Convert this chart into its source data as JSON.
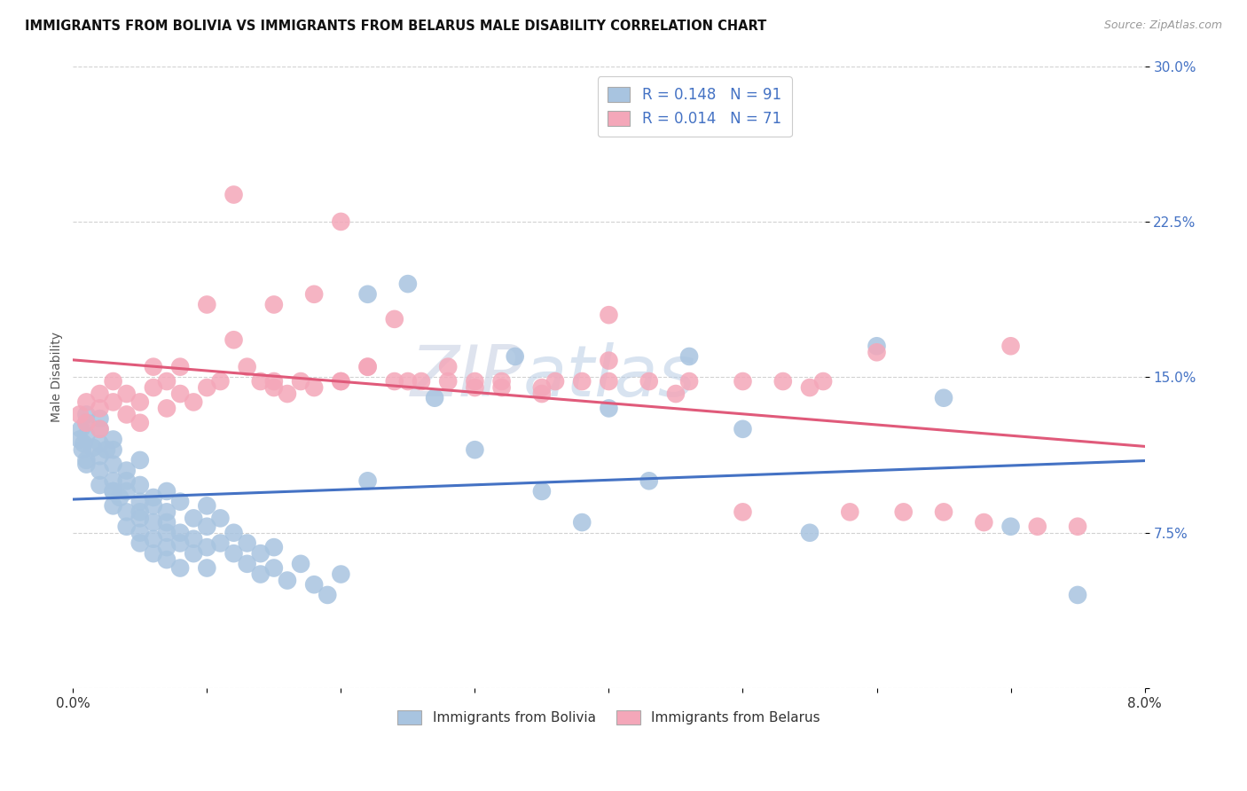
{
  "title": "IMMIGRANTS FROM BOLIVIA VS IMMIGRANTS FROM BELARUS MALE DISABILITY CORRELATION CHART",
  "source": "Source: ZipAtlas.com",
  "xlabel_bolivia": "Immigrants from Bolivia",
  "xlabel_belarus": "Immigrants from Belarus",
  "ylabel": "Male Disability",
  "xmin": 0.0,
  "xmax": 0.08,
  "ymin": 0.0,
  "ymax": 0.3,
  "bolivia_color": "#a8c4e0",
  "belarus_color": "#f4a7b9",
  "bolivia_line_color": "#4472c4",
  "belarus_line_color": "#e05a7a",
  "R_bolivia": 0.148,
  "N_bolivia": 91,
  "R_belarus": 0.014,
  "N_belarus": 71,
  "bolivia_x": [
    0.0005,
    0.0006,
    0.0007,
    0.0008,
    0.001,
    0.001,
    0.001,
    0.001,
    0.001,
    0.0015,
    0.002,
    0.002,
    0.002,
    0.002,
    0.002,
    0.002,
    0.0025,
    0.003,
    0.003,
    0.003,
    0.003,
    0.003,
    0.003,
    0.003,
    0.0035,
    0.004,
    0.004,
    0.004,
    0.004,
    0.004,
    0.005,
    0.005,
    0.005,
    0.005,
    0.005,
    0.005,
    0.005,
    0.006,
    0.006,
    0.006,
    0.006,
    0.006,
    0.007,
    0.007,
    0.007,
    0.007,
    0.007,
    0.007,
    0.008,
    0.008,
    0.008,
    0.008,
    0.009,
    0.009,
    0.009,
    0.01,
    0.01,
    0.01,
    0.01,
    0.011,
    0.011,
    0.012,
    0.012,
    0.013,
    0.013,
    0.014,
    0.014,
    0.015,
    0.015,
    0.016,
    0.017,
    0.018,
    0.019,
    0.02,
    0.022,
    0.022,
    0.025,
    0.027,
    0.03,
    0.033,
    0.035,
    0.038,
    0.04,
    0.043,
    0.046,
    0.05,
    0.055,
    0.06,
    0.065,
    0.07,
    0.075
  ],
  "bolivia_y": [
    0.12,
    0.125,
    0.115,
    0.118,
    0.11,
    0.122,
    0.128,
    0.132,
    0.108,
    0.116,
    0.105,
    0.112,
    0.118,
    0.098,
    0.125,
    0.13,
    0.115,
    0.095,
    0.1,
    0.108,
    0.115,
    0.088,
    0.095,
    0.12,
    0.092,
    0.085,
    0.095,
    0.105,
    0.078,
    0.1,
    0.082,
    0.09,
    0.098,
    0.075,
    0.085,
    0.11,
    0.07,
    0.08,
    0.092,
    0.072,
    0.088,
    0.065,
    0.075,
    0.085,
    0.095,
    0.068,
    0.08,
    0.062,
    0.075,
    0.09,
    0.07,
    0.058,
    0.072,
    0.082,
    0.065,
    0.068,
    0.078,
    0.088,
    0.058,
    0.07,
    0.082,
    0.065,
    0.075,
    0.06,
    0.07,
    0.055,
    0.065,
    0.058,
    0.068,
    0.052,
    0.06,
    0.05,
    0.045,
    0.055,
    0.19,
    0.1,
    0.195,
    0.14,
    0.115,
    0.16,
    0.095,
    0.08,
    0.135,
    0.1,
    0.16,
    0.125,
    0.075,
    0.165,
    0.14,
    0.078,
    0.045
  ],
  "belarus_x": [
    0.0005,
    0.001,
    0.001,
    0.002,
    0.002,
    0.002,
    0.003,
    0.003,
    0.004,
    0.004,
    0.005,
    0.005,
    0.006,
    0.006,
    0.007,
    0.007,
    0.008,
    0.008,
    0.009,
    0.01,
    0.011,
    0.012,
    0.013,
    0.014,
    0.015,
    0.016,
    0.017,
    0.018,
    0.02,
    0.022,
    0.024,
    0.026,
    0.028,
    0.03,
    0.032,
    0.035,
    0.038,
    0.04,
    0.043,
    0.046,
    0.05,
    0.053,
    0.056,
    0.058,
    0.06,
    0.062,
    0.065,
    0.068,
    0.07,
    0.072,
    0.075,
    0.01,
    0.012,
    0.015,
    0.018,
    0.02,
    0.022,
    0.024,
    0.028,
    0.032,
    0.036,
    0.04,
    0.015,
    0.02,
    0.025,
    0.03,
    0.035,
    0.04,
    0.045,
    0.05,
    0.055
  ],
  "belarus_y": [
    0.132,
    0.138,
    0.128,
    0.142,
    0.135,
    0.125,
    0.138,
    0.148,
    0.132,
    0.142,
    0.128,
    0.138,
    0.145,
    0.155,
    0.135,
    0.148,
    0.142,
    0.155,
    0.138,
    0.145,
    0.148,
    0.238,
    0.155,
    0.148,
    0.145,
    0.142,
    0.148,
    0.145,
    0.148,
    0.155,
    0.148,
    0.148,
    0.148,
    0.148,
    0.148,
    0.145,
    0.148,
    0.148,
    0.148,
    0.148,
    0.085,
    0.148,
    0.148,
    0.085,
    0.162,
    0.085,
    0.085,
    0.08,
    0.165,
    0.078,
    0.078,
    0.185,
    0.168,
    0.185,
    0.19,
    0.225,
    0.155,
    0.178,
    0.155,
    0.145,
    0.148,
    0.18,
    0.148,
    0.148,
    0.148,
    0.145,
    0.142,
    0.158,
    0.142,
    0.148,
    0.145
  ],
  "watermark_zip": "ZIP",
  "watermark_atlas": "atlas",
  "background_color": "#ffffff",
  "grid_color": "#cccccc"
}
